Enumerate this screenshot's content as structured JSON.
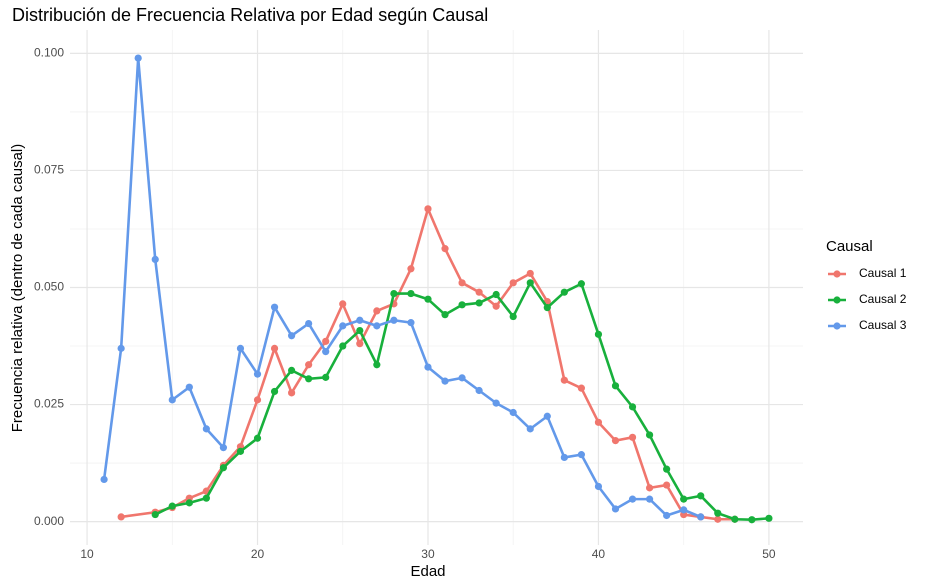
{
  "chart_data": {
    "type": "line",
    "title": "Distribución de Frecuencia Relativa por Edad según Causal",
    "xlabel": "Edad",
    "ylabel": "Frecuencia relativa (dentro de cada causal)",
    "legend_title": "Causal",
    "legend": "right",
    "grid": true,
    "xlim": [
      9,
      52
    ],
    "ylim": [
      -0.005,
      0.105
    ],
    "xticks": [
      10,
      20,
      30,
      40,
      50
    ],
    "xminor": [
      15,
      25,
      35,
      45
    ],
    "yticks": [
      {
        "value": 0,
        "label": "0.000"
      },
      {
        "value": 0.025,
        "label": "0.025"
      },
      {
        "value": 0.05,
        "label": "0.050"
      },
      {
        "value": 0.075,
        "label": "0.075"
      },
      {
        "value": 0.1,
        "label": "0.100"
      }
    ],
    "yminor": [
      0.0125,
      0.0375,
      0.0625,
      0.0875
    ],
    "series": [
      {
        "name": "Causal 1",
        "color": "#F0766D",
        "x": [
          12,
          14,
          15,
          16,
          17,
          18,
          19,
          20,
          21,
          22,
          23,
          24,
          25,
          26,
          27,
          28,
          29,
          30,
          31,
          32,
          33,
          34,
          35,
          36,
          37,
          38,
          39,
          40,
          41,
          42,
          43,
          44,
          45,
          46,
          47,
          48
        ],
        "values": [
          0.001,
          0.002,
          0.003,
          0.005,
          0.0065,
          0.012,
          0.016,
          0.026,
          0.037,
          0.0275,
          0.0335,
          0.0385,
          0.0465,
          0.038,
          0.045,
          0.0465,
          0.054,
          0.0668,
          0.0583,
          0.051,
          0.049,
          0.046,
          0.051,
          0.053,
          0.047,
          0.0302,
          0.0285,
          0.0212,
          0.0173,
          0.018,
          0.0072,
          0.0078,
          0.0015,
          0.001,
          0.0005,
          0.0005
        ]
      },
      {
        "name": "Causal 2",
        "color": "#18B03C",
        "x": [
          14,
          15,
          16,
          17,
          18,
          19,
          20,
          21,
          22,
          23,
          24,
          25,
          26,
          27,
          28,
          29,
          30,
          31,
          32,
          33,
          34,
          35,
          36,
          37,
          38,
          39,
          40,
          41,
          42,
          43,
          44,
          45,
          46,
          47,
          48,
          49,
          50
        ],
        "values": [
          0.0015,
          0.0033,
          0.004,
          0.005,
          0.0115,
          0.015,
          0.0178,
          0.0278,
          0.0323,
          0.0305,
          0.0308,
          0.0375,
          0.0408,
          0.0335,
          0.0487,
          0.0487,
          0.0475,
          0.0442,
          0.0463,
          0.0467,
          0.0485,
          0.0438,
          0.051,
          0.0457,
          0.049,
          0.0508,
          0.04,
          0.029,
          0.0245,
          0.0185,
          0.0112,
          0.0048,
          0.0055,
          0.0018,
          0.0005,
          0.0004,
          0.0007
        ]
      },
      {
        "name": "Causal 3",
        "color": "#6399EA",
        "x": [
          11,
          12,
          13,
          14,
          15,
          16,
          17,
          18,
          19,
          20,
          21,
          22,
          23,
          24,
          25,
          26,
          27,
          28,
          29,
          30,
          31,
          32,
          33,
          34,
          35,
          36,
          37,
          38,
          39,
          40,
          41,
          42,
          43,
          44,
          45,
          46
        ],
        "values": [
          0.009,
          0.037,
          0.099,
          0.056,
          0.026,
          0.0287,
          0.0198,
          0.0158,
          0.037,
          0.0315,
          0.0458,
          0.0397,
          0.0423,
          0.0363,
          0.0418,
          0.043,
          0.0418,
          0.043,
          0.0425,
          0.033,
          0.03,
          0.0307,
          0.028,
          0.0253,
          0.0233,
          0.0198,
          0.0225,
          0.0137,
          0.0143,
          0.0075,
          0.0027,
          0.0048,
          0.0048,
          0.0013,
          0.0025,
          0.001
        ]
      }
    ]
  }
}
